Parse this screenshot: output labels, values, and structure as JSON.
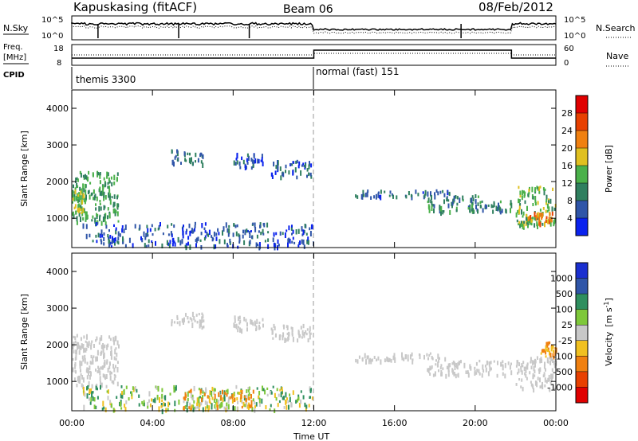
{
  "header": {
    "station": "Kapuskasing (fitACF)",
    "beam": "Beam 06",
    "date": "08/Feb/2012"
  },
  "top_panels": {
    "nsky_label": "N.Sky",
    "nsearch_label": "N.Search",
    "freq_label_1": "Freq.",
    "freq_label_2": "[MHz]",
    "nave_label": "Nave",
    "cpid_label": "CPID",
    "nsky_ticks": [
      "10^5",
      "10^0"
    ],
    "nsearch_ticks": [
      "10^5",
      "10^0"
    ],
    "freq_ticks": [
      "18",
      "8"
    ],
    "nave_ticks": [
      "60",
      "0"
    ],
    "cpid_segments": [
      {
        "name": "themis 3300",
        "start_hour": 0,
        "end_hour": 12
      },
      {
        "name": "normal (fast) 151",
        "start_hour": 12,
        "end_hour": 24
      }
    ]
  },
  "axes": {
    "xlabel": "Time UT",
    "ylabel": "Slant Range [km]",
    "x_tick_labels": [
      "00:00",
      "04:00",
      "08:00",
      "12:00",
      "16:00",
      "20:00",
      "00:00"
    ],
    "y_tick_labels": [
      "1000",
      "2000",
      "3000",
      "4000"
    ]
  },
  "power_colorbar": {
    "label": "Power [dB]",
    "tick_labels": [
      "4",
      "8",
      "12",
      "16",
      "20",
      "24",
      "28"
    ],
    "colors": [
      "#0a22ee",
      "#2f55a8",
      "#2f7f5f",
      "#4ab14a",
      "#e0c020",
      "#f08010",
      "#e84000",
      "#e00000"
    ]
  },
  "velocity_colorbar": {
    "label": "Velocity",
    "unit": "[m s",
    "unit_exp": "-1",
    "unit_close": "]",
    "tick_labels": [
      "1000",
      "500",
      "100",
      "25",
      "-25",
      "-100",
      "-500",
      "-1000"
    ],
    "colors": [
      "#1a2fd0",
      "#2f55a8",
      "#2f8f5f",
      "#7ec83a",
      "#c8c8c8",
      "#f0c020",
      "#f08010",
      "#e84000",
      "#e00000"
    ]
  },
  "chart_data": [
    {
      "type": "heatmap",
      "title": "Power",
      "xlabel": "Time UT",
      "ylabel": "Slant Range [km]",
      "xlim": [
        0,
        24
      ],
      "ylim": [
        200,
        4500
      ],
      "zlabel": "Power [dB]",
      "zlim": [
        0,
        32
      ],
      "regions": [
        {
          "t0": 0.0,
          "t1": 2.3,
          "r0": 900,
          "r1": 2300,
          "z": 12
        },
        {
          "t0": 0.0,
          "t1": 0.6,
          "r0": 1100,
          "r1": 1800,
          "z": 16
        },
        {
          "t0": 4.9,
          "t1": 6.5,
          "r0": 2500,
          "r1": 2900,
          "z": 8
        },
        {
          "t0": 8.0,
          "t1": 9.5,
          "r0": 2400,
          "r1": 2800,
          "z": 6
        },
        {
          "t0": 9.8,
          "t1": 11.9,
          "r0": 2150,
          "r1": 2600,
          "z": 6
        },
        {
          "t0": 0.5,
          "t1": 12.0,
          "r0": 250,
          "r1": 900,
          "z": 6
        },
        {
          "t0": 14.0,
          "t1": 18.8,
          "r0": 1600,
          "r1": 1800,
          "z": 6
        },
        {
          "t0": 17.6,
          "t1": 20.2,
          "r0": 1200,
          "r1": 1700,
          "z": 10
        },
        {
          "t0": 20.2,
          "t1": 21.8,
          "r0": 1200,
          "r1": 1500,
          "z": 10
        },
        {
          "t0": 22.0,
          "t1": 24.0,
          "r0": 800,
          "r1": 1900,
          "z": 14
        },
        {
          "t0": 22.5,
          "t1": 23.8,
          "r0": 900,
          "r1": 1200,
          "z": 22
        }
      ]
    },
    {
      "type": "heatmap",
      "title": "Velocity",
      "xlabel": "Time UT",
      "ylabel": "Slant Range [km]",
      "xlim": [
        0,
        24
      ],
      "ylim": [
        200,
        4500
      ],
      "zlabel": "Velocity [m s-1]",
      "zlim": [
        -1000,
        1000
      ],
      "regions": [
        {
          "t0": 0.0,
          "t1": 2.3,
          "r0": 900,
          "r1": 2300,
          "z": 0
        },
        {
          "t0": 4.9,
          "t1": 6.5,
          "r0": 2500,
          "r1": 2900,
          "z": 0
        },
        {
          "t0": 8.0,
          "t1": 9.5,
          "r0": 2400,
          "r1": 2800,
          "z": 0
        },
        {
          "t0": 9.8,
          "t1": 11.9,
          "r0": 2150,
          "r1": 2600,
          "z": 0
        },
        {
          "t0": 0.5,
          "t1": 12.0,
          "r0": 250,
          "r1": 900,
          "z": 60
        },
        {
          "t0": 5.5,
          "t1": 9.0,
          "r0": 300,
          "r1": 800,
          "z": -60
        },
        {
          "t0": 14.0,
          "t1": 18.8,
          "r0": 1600,
          "r1": 1800,
          "z": 0
        },
        {
          "t0": 17.6,
          "t1": 21.8,
          "r0": 1200,
          "r1": 1600,
          "z": 0
        },
        {
          "t0": 22.0,
          "t1": 24.0,
          "r0": 800,
          "r1": 1700,
          "z": 0
        },
        {
          "t0": 23.2,
          "t1": 24.0,
          "r0": 1700,
          "r1": 2100,
          "z": -200
        }
      ]
    }
  ]
}
